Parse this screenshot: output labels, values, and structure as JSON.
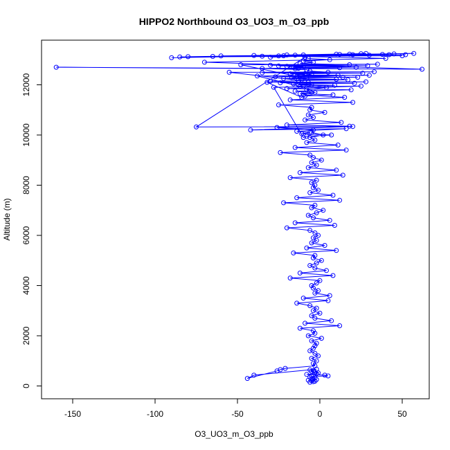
{
  "chart_data": {
    "type": "line",
    "title": "HIPPO2 Northbound O3_UO3_m_O3_ppb",
    "xlabel": "O3_UO3_m_O3_ppb",
    "ylabel": "Altitude (m)",
    "xlim": [
      -165,
      62
    ],
    "ylim": [
      -100,
      13700
    ],
    "x_ticks": [
      -150,
      -100,
      -50,
      0,
      50
    ],
    "y_ticks": [
      0,
      2000,
      4000,
      6000,
      8000,
      10000,
      12000
    ],
    "x_tick_labels": [
      "-150",
      "-100",
      "-50",
      "0",
      "50"
    ],
    "y_tick_labels": [
      "0",
      "2000",
      "4000",
      "6000",
      "8000",
      "10000",
      "12000"
    ],
    "marker": "open-circle",
    "grid": false,
    "legend": "none",
    "color": "#0000ff",
    "series": [
      {
        "x": [
          -6,
          -4,
          -3,
          -5,
          -7,
          -2,
          -4,
          -3,
          -6,
          -5,
          5,
          3,
          -8,
          -2,
          -1,
          -3,
          -5,
          -4,
          -6,
          -2,
          -40,
          -44,
          -26,
          -24,
          -21,
          -3,
          -4,
          -2,
          -5,
          -1,
          -3,
          -6,
          -4,
          -3,
          -2,
          -5,
          1,
          -7,
          -3,
          -4,
          -12,
          12,
          -9,
          7,
          -3,
          -5,
          0,
          -4,
          -2,
          -6,
          -14,
          5,
          -10,
          6,
          -3,
          -1,
          -4,
          -5,
          -2,
          0,
          -18,
          8,
          -12,
          4,
          -3,
          -6,
          -2,
          1,
          -4,
          -3,
          -16,
          10,
          -8,
          3,
          -5,
          -2,
          -4,
          -1,
          -3,
          -6,
          -20,
          9,
          -15,
          6,
          -4,
          -7,
          -2,
          2,
          -5,
          -3,
          -22,
          12,
          -14,
          8,
          -6,
          -1,
          -4,
          -3,
          -5,
          -2,
          -18,
          14,
          -12,
          10,
          -7,
          -2,
          -5,
          1,
          -4,
          -6,
          -24,
          16,
          -15,
          11,
          -8,
          -3,
          -6,
          2,
          -5,
          -4,
          -26,
          18,
          -20,
          13,
          -9,
          -4,
          -7,
          3,
          -6,
          -5,
          -25,
          20,
          -18,
          15,
          -10,
          -3,
          -8,
          4,
          -5,
          -7,
          -30,
          17,
          -22,
          14,
          -11,
          -5,
          -9,
          5,
          -6,
          -8,
          -35,
          22,
          -25,
          18,
          -12,
          -4,
          -10,
          6,
          -7,
          -9,
          -75,
          20,
          -42,
          16,
          -14,
          -6,
          -11,
          7,
          -8,
          -10,
          -28,
          25,
          -20,
          19,
          -15,
          -5,
          -12,
          8,
          -9,
          -11,
          -32,
          28,
          -24,
          21,
          -16,
          -7,
          -13,
          9,
          -10,
          -12,
          -38,
          30,
          -27,
          23,
          -17,
          -8,
          -14,
          10,
          -11,
          -13,
          -55,
          33,
          -35,
          26,
          -18,
          -9,
          -15,
          11,
          -12,
          -14,
          -48,
          35,
          -30,
          29,
          -20,
          -10,
          -16,
          12,
          -13,
          -15,
          -160,
          62,
          -70,
          40,
          -25,
          20,
          -30,
          28,
          -15,
          10,
          -90,
          57,
          -80,
          52,
          -60,
          45,
          -40,
          38,
          -20,
          25,
          -85,
          50,
          -65,
          42,
          -35,
          30,
          -22,
          18,
          -10,
          12
        ],
        "y": [
          150,
          170,
          190,
          210,
          230,
          260,
          290,
          320,
          350,
          380,
          400,
          430,
          460,
          490,
          520,
          550,
          580,
          610,
          640,
          670,
          430,
          300,
          600,
          650,
          700,
          800,
          900,
          1000,
          1100,
          1200,
          1300,
          1400,
          1500,
          1600,
          1700,
          1800,
          1900,
          2000,
          2100,
          2200,
          2300,
          2400,
          2500,
          2600,
          2700,
          2800,
          2900,
          3000,
          3100,
          3200,
          3300,
          3400,
          3500,
          3600,
          3700,
          3800,
          3900,
          4000,
          4100,
          4200,
          4300,
          4400,
          4500,
          4600,
          4700,
          4800,
          4900,
          5000,
          5100,
          5200,
          5300,
          5400,
          5500,
          5600,
          5700,
          5800,
          5900,
          6000,
          6100,
          6200,
          6300,
          6400,
          6500,
          6600,
          6700,
          6800,
          6900,
          7000,
          7100,
          7200,
          7300,
          7400,
          7500,
          7600,
          7700,
          7800,
          7900,
          8000,
          8100,
          8200,
          8300,
          8400,
          8500,
          8600,
          8700,
          8800,
          8900,
          9000,
          9100,
          9200,
          9300,
          9400,
          9500,
          9600,
          9700,
          9800,
          9900,
          10000,
          10100,
          10200,
          10300,
          10350,
          10400,
          10500,
          10600,
          10700,
          10800,
          10900,
          11000,
          11100,
          11200,
          11300,
          11400,
          11500,
          11600,
          11700,
          11800,
          11900,
          12000,
          12100,
          12150,
          12200,
          12250,
          12300,
          12350,
          12400,
          12450,
          12500,
          12550,
          12600,
          12650,
          12700,
          12750,
          12800,
          12850,
          12900,
          12950,
          13000,
          13050,
          13100,
          10320,
          10340,
          10200,
          10250,
          10150,
          10100,
          10050,
          10000,
          9950,
          9900,
          11900,
          11950,
          11850,
          11800,
          11750,
          11700,
          11650,
          11600,
          11550,
          11500,
          12100,
          12120,
          12080,
          12060,
          12040,
          12020,
          12000,
          11980,
          11960,
          11940,
          12350,
          12380,
          12320,
          12300,
          12280,
          12260,
          12240,
          12220,
          12200,
          12180,
          12500,
          12520,
          12480,
          12460,
          12440,
          12420,
          12400,
          12380,
          12360,
          12340,
          12800,
          12820,
          12780,
          12760,
          12740,
          12720,
          12700,
          12680,
          12660,
          12640,
          12700,
          12620,
          12900,
          13050,
          13150,
          13200,
          13100,
          13250,
          13180,
          13220,
          13080,
          13250,
          13120,
          13200,
          13150,
          13230,
          13170,
          13210,
          13190,
          13240,
          13110,
          13160,
          13130,
          13200,
          13140,
          13180,
          13160,
          13220,
          13190,
          13210
        ]
      }
    ]
  }
}
